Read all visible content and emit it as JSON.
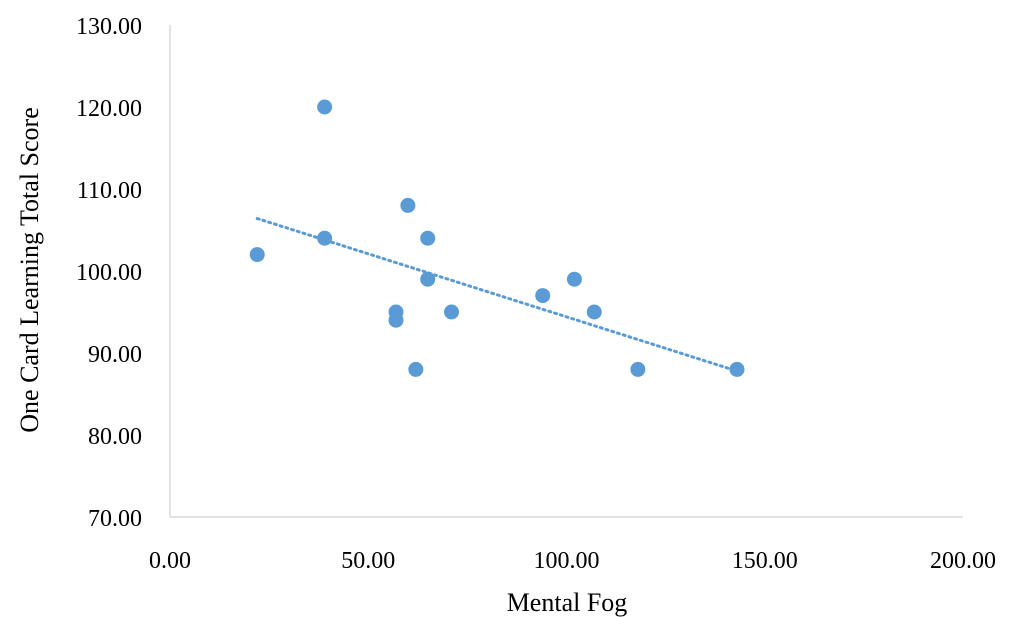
{
  "chart_data": {
    "type": "scatter",
    "title": "",
    "xlabel": "Mental Fog",
    "ylabel": "One Card Learning Total Score",
    "xlim": [
      0,
      200
    ],
    "ylim": [
      70,
      130
    ],
    "x_ticks": [
      0,
      50,
      100,
      150,
      200
    ],
    "y_ticks": [
      70,
      80,
      90,
      100,
      110,
      120,
      130
    ],
    "x_tick_labels": [
      "0.00",
      "50.00",
      "100.00",
      "150.00",
      "200.00"
    ],
    "y_tick_labels": [
      "70.00",
      "80.00",
      "90.00",
      "100.00",
      "110.00",
      "120.00",
      "130.00"
    ],
    "grid": false,
    "legend": "none",
    "series": [
      {
        "color": "#5B9BD5",
        "points": [
          {
            "x": 22,
            "y": 102
          },
          {
            "x": 39,
            "y": 120
          },
          {
            "x": 39,
            "y": 104
          },
          {
            "x": 57,
            "y": 95
          },
          {
            "x": 57,
            "y": 94
          },
          {
            "x": 60,
            "y": 108
          },
          {
            "x": 62,
            "y": 88
          },
          {
            "x": 65,
            "y": 104
          },
          {
            "x": 65,
            "y": 99
          },
          {
            "x": 71,
            "y": 95
          },
          {
            "x": 94,
            "y": 97
          },
          {
            "x": 102,
            "y": 99
          },
          {
            "x": 107,
            "y": 95
          },
          {
            "x": 118,
            "y": 88
          },
          {
            "x": 143,
            "y": 88
          }
        ]
      }
    ],
    "trendline": {
      "type": "linear",
      "style": "dotted",
      "color": "#5B9BD5",
      "x_range": [
        22,
        143
      ],
      "y_range": [
        106.4,
        87.8
      ]
    }
  }
}
